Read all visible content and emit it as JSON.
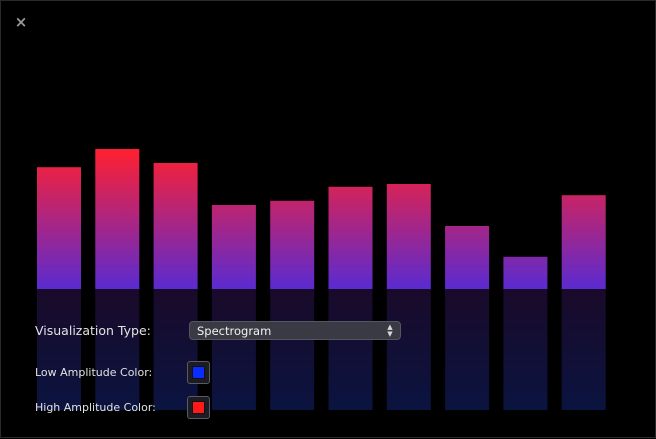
{
  "window": {
    "close_glyph": "×"
  },
  "visualizer": {
    "levels": [
      0.87,
      1.0,
      0.9,
      0.6,
      0.63,
      0.73,
      0.75,
      0.45,
      0.23,
      0.67
    ],
    "low_color": "#5a2bd0",
    "high_color": "#ff2030",
    "reflection_color": "#0a1440"
  },
  "controls": {
    "visualization_type": {
      "label": "Visualization Type:",
      "value": "Spectrogram"
    },
    "low_amplitude": {
      "label": "Low Amplitude Color:",
      "color": "#0a2cff"
    },
    "high_amplitude": {
      "label": "High Amplitude Color:",
      "color": "#ff1a1a"
    }
  }
}
